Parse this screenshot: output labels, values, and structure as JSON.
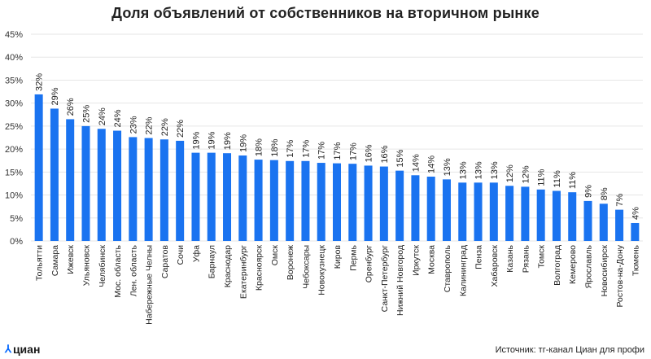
{
  "chart_data": {
    "type": "bar",
    "title": "Доля объявлений от собственников на вторичном рынке",
    "categories": [
      "Тольятти",
      "Самара",
      "Ижевск",
      "Ульяновск",
      "Челябинск",
      "Мос. область",
      "Лен. область",
      "Набережные Челны",
      "Саратов",
      "Сочи",
      "Уфа",
      "Барнаул",
      "Краснодар",
      "Екатеринбург",
      "Красноярск",
      "Омск",
      "Воронеж",
      "Чебоксары",
      "Новокузнецк",
      "Киров",
      "Пермь",
      "Оренбург",
      "Санкт-Петербург",
      "Нижний Новгород",
      "Иркутск",
      "Москва",
      "Ставрополь",
      "Калининград",
      "Пенза",
      "Хабаровск",
      "Казань",
      "Рязань",
      "Томск",
      "Волгоград",
      "Кемерово",
      "Ярославль",
      "Новосибирск",
      "Ростов-на-Дону",
      "Тюмень"
    ],
    "values": [
      31.9,
      28.8,
      26.5,
      25.0,
      24.4,
      24.0,
      22.6,
      22.4,
      22.1,
      21.8,
      19.2,
      19.2,
      19.1,
      18.6,
      17.7,
      17.6,
      17.4,
      17.4,
      17.0,
      16.9,
      16.8,
      16.4,
      16.2,
      15.3,
      14.3,
      14.0,
      13.4,
      12.7,
      12.7,
      12.7,
      12.0,
      11.8,
      11.2,
      10.9,
      10.6,
      8.7,
      8.1,
      6.8,
      3.9
    ],
    "labels": [
      "32%",
      "29%",
      "26%",
      "25%",
      "24%",
      "24%",
      "23%",
      "22%",
      "22%",
      "22%",
      "19%",
      "19%",
      "19%",
      "19%",
      "18%",
      "18%",
      "17%",
      "17%",
      "17%",
      "17%",
      "17%",
      "16%",
      "16%",
      "15%",
      "14%",
      "14%",
      "13%",
      "13%",
      "13%",
      "13%",
      "12%",
      "12%",
      "11%",
      "11%",
      "11%",
      "9%",
      "8%",
      "7%",
      "4%"
    ],
    "yticks": [
      "0%",
      "5%",
      "10%",
      "15%",
      "20%",
      "25%",
      "30%",
      "35%",
      "40%",
      "45%"
    ],
    "ylim": [
      0,
      45
    ],
    "grid": true,
    "xlabel": "",
    "ylabel": "",
    "bar_color": "#1a73f0"
  },
  "footer": {
    "logo": "циан",
    "source": "Источник: тг-канал Циан для профи"
  }
}
